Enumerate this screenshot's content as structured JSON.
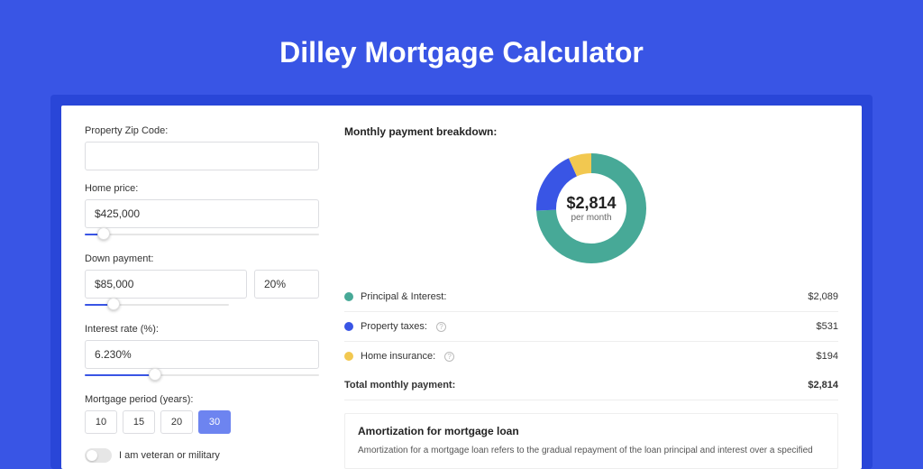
{
  "page": {
    "title": "Dilley Mortgage Calculator",
    "background_color": "#3955e5",
    "inner_background_color": "#2946d8"
  },
  "form": {
    "zip": {
      "label": "Property Zip Code:",
      "value": ""
    },
    "home_price": {
      "label": "Home price:",
      "value": "$425,000",
      "slider_fill_pct": 8
    },
    "down_payment": {
      "label": "Down payment:",
      "value": "$85,000",
      "pct": "20%",
      "slider_fill_pct": 20
    },
    "interest_rate": {
      "label": "Interest rate (%):",
      "value": "6.230%",
      "slider_fill_pct": 30
    },
    "period": {
      "label": "Mortgage period (years):",
      "options": [
        "10",
        "15",
        "20",
        "30"
      ],
      "selected": "30"
    },
    "veteran": {
      "label": "I am veteran or military",
      "on": false
    }
  },
  "breakdown": {
    "title": "Monthly payment breakdown:",
    "center_amount": "$2,814",
    "center_sub": "per month",
    "donut": {
      "type": "donut",
      "radius": 50,
      "stroke_width": 22,
      "background_color": "#ffffff",
      "slices": [
        {
          "label": "Principal & Interest",
          "value": 2089,
          "pct": 74.2,
          "color": "#47a997"
        },
        {
          "label": "Property taxes",
          "value": 531,
          "pct": 18.9,
          "color": "#3955e5"
        },
        {
          "label": "Home insurance",
          "value": 194,
          "pct": 6.9,
          "color": "#f2c850"
        }
      ]
    },
    "rows": [
      {
        "dot_color": "#47a997",
        "label": "Principal & Interest:",
        "value": "$2,089",
        "info": false
      },
      {
        "dot_color": "#3955e5",
        "label": "Property taxes:",
        "value": "$531",
        "info": true
      },
      {
        "dot_color": "#f2c850",
        "label": "Home insurance:",
        "value": "$194",
        "info": true
      }
    ],
    "total": {
      "label": "Total monthly payment:",
      "value": "$2,814"
    }
  },
  "amortization": {
    "title": "Amortization for mortgage loan",
    "text": "Amortization for a mortgage loan refers to the gradual repayment of the loan principal and interest over a specified"
  }
}
